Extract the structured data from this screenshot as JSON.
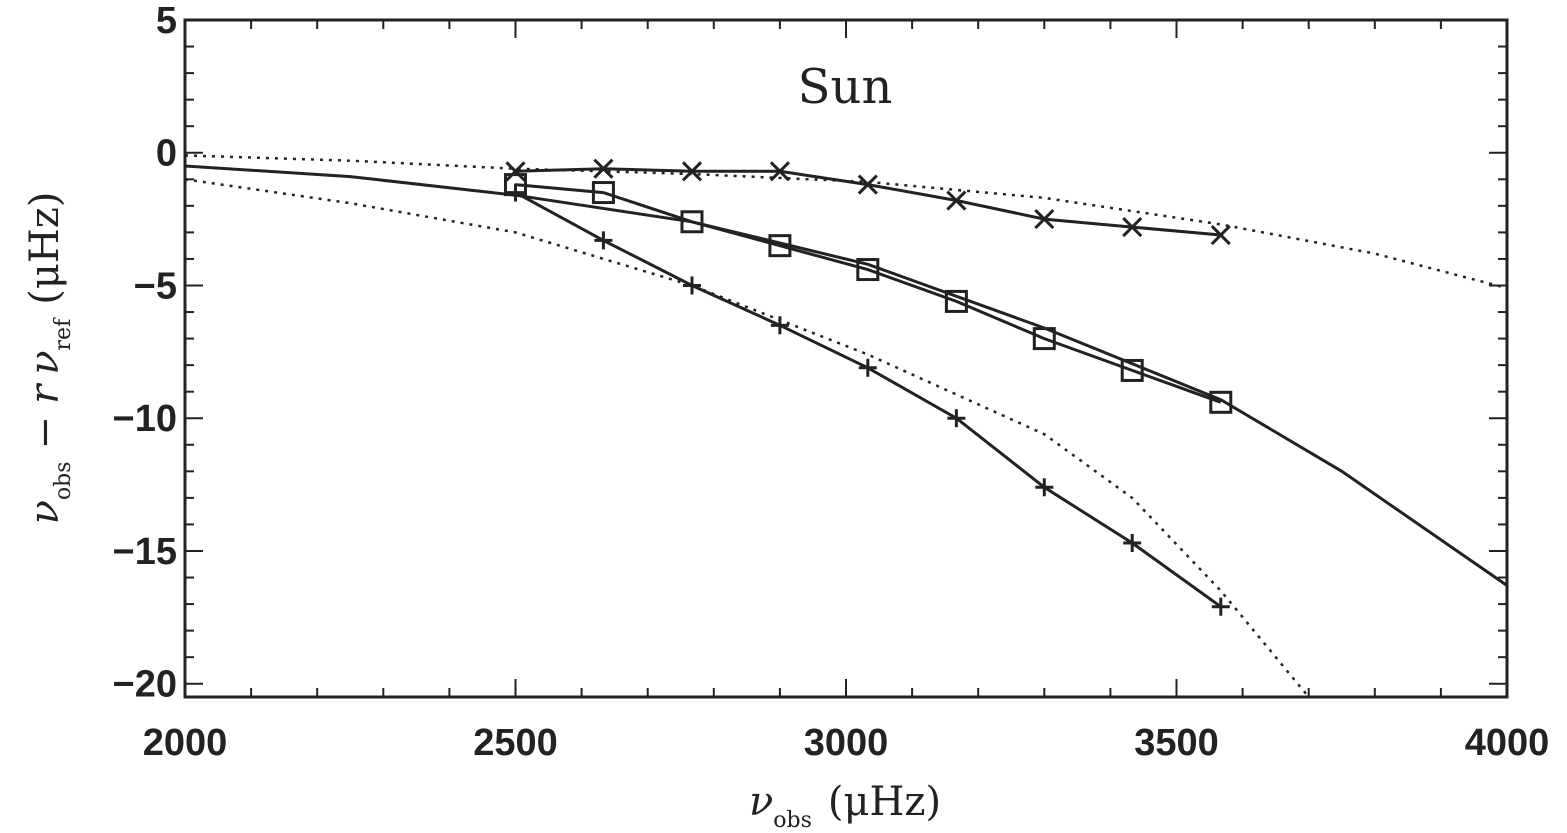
{
  "chart_data": {
    "type": "line",
    "title": "Sun",
    "xlabel": {
      "symbol": "ν",
      "sub": "obs",
      "unit": "(μHz)"
    },
    "ylabel": {
      "a": "ν",
      "a_sub": "obs",
      "op": "−",
      "r": "r",
      "b": "ν",
      "b_sub": "ref",
      "unit": "(μHz)"
    },
    "xlim": [
      2000,
      4000
    ],
    "ylim": [
      -20.5,
      5
    ],
    "xticks": [
      2000,
      2500,
      3000,
      3500,
      4000
    ],
    "yticks": [
      5,
      0,
      -5,
      -10,
      -15,
      -20
    ],
    "ytick_labels": [
      "5",
      "0",
      "−5",
      "−10",
      "−15",
      "−20"
    ],
    "grid": false,
    "series": [
      {
        "marker": "x",
        "style": "solid",
        "x": [
          2500,
          2633,
          2767,
          2900,
          3033,
          3167,
          3300,
          3433,
          3567
        ],
        "y": [
          -0.7,
          -0.6,
          -0.7,
          -0.7,
          -1.2,
          -1.8,
          -2.5,
          -2.8,
          -3.1
        ]
      },
      {
        "marker": "square",
        "style": "solid",
        "x": [
          2500,
          2633,
          2767,
          2900,
          3033,
          3167,
          3300,
          3433,
          3567
        ],
        "y": [
          -1.2,
          -1.5,
          -2.6,
          -3.5,
          -4.4,
          -5.6,
          -7.0,
          -8.2,
          -9.4
        ]
      },
      {
        "marker": "plus",
        "style": "solid",
        "x": [
          2500,
          2633,
          2767,
          2900,
          3033,
          3167,
          3300,
          3433,
          3567
        ],
        "y": [
          -1.5,
          -3.3,
          -5.0,
          -6.5,
          -8.1,
          -10.0,
          -12.6,
          -14.7,
          -17.1
        ]
      },
      {
        "marker": "none",
        "style": "solid",
        "x": [
          2000,
          2250,
          2500,
          2767,
          3033,
          3300,
          3567,
          3750,
          4000
        ],
        "y": [
          -0.5,
          -0.9,
          -1.6,
          -2.6,
          -4.2,
          -6.6,
          -9.3,
          -12.0,
          -16.3
        ]
      },
      {
        "marker": "none",
        "style": "dotted",
        "x": [
          2000,
          2250,
          2500,
          2767,
          3033,
          3300,
          3567,
          3800,
          4000
        ],
        "y": [
          -0.1,
          -0.3,
          -0.6,
          -0.8,
          -1.1,
          -1.7,
          -2.7,
          -3.8,
          -5.1
        ]
      },
      {
        "marker": "none",
        "style": "dotted",
        "x": [
          2000,
          2250,
          2500,
          2767,
          3033,
          3300,
          3433,
          3567,
          3700
        ],
        "y": [
          -1.0,
          -1.9,
          -3.0,
          -5.0,
          -7.6,
          -10.6,
          -13.0,
          -16.5,
          -20.5
        ]
      }
    ]
  }
}
